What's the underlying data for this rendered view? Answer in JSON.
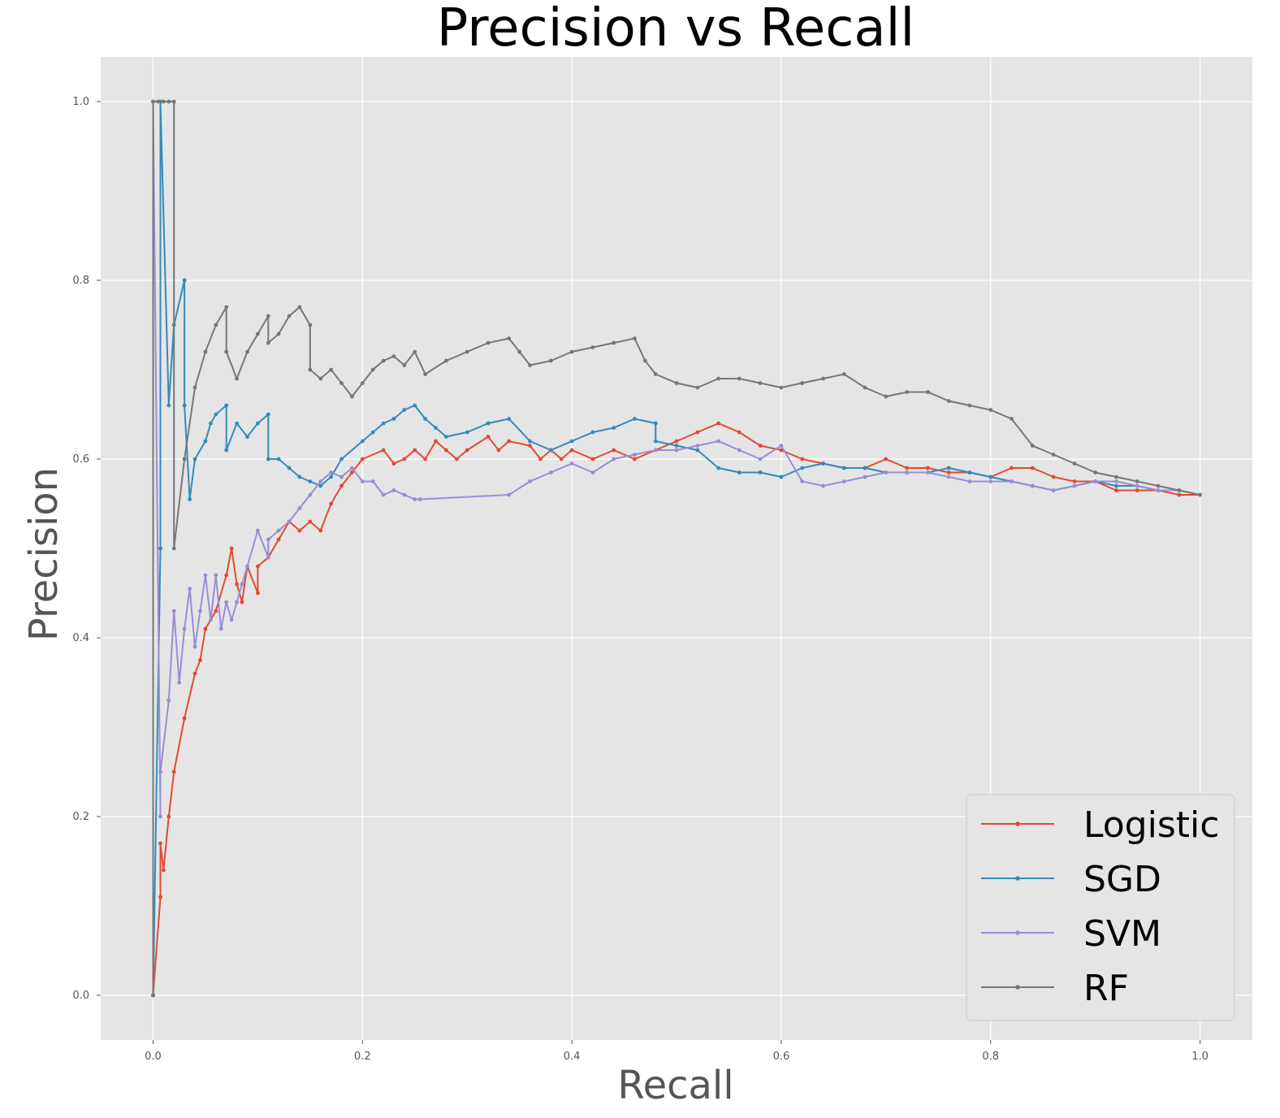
{
  "chart_data": {
    "type": "line",
    "title": "Precision vs Recall",
    "xlabel": "Recall",
    "ylabel": "Precision",
    "xlim": [
      -0.05,
      1.05
    ],
    "ylim": [
      -0.05,
      1.05
    ],
    "xticks": [
      0.0,
      0.2,
      0.4,
      0.6,
      0.8,
      1.0
    ],
    "yticks": [
      0.0,
      0.2,
      0.4,
      0.6,
      0.8,
      1.0
    ],
    "xtick_labels": [
      "0.0",
      "0.2",
      "0.4",
      "0.6",
      "0.8",
      "1.0"
    ],
    "ytick_labels": [
      "0.0",
      "0.2",
      "0.4",
      "0.6",
      "0.8",
      "1.0"
    ],
    "grid": true,
    "legend_position": "bottom-right",
    "series": [
      {
        "name": "Logistic",
        "color": "#E24A33",
        "x": [
          0.0,
          0.007,
          0.007,
          0.01,
          0.015,
          0.02,
          0.03,
          0.04,
          0.045,
          0.05,
          0.06,
          0.07,
          0.075,
          0.08,
          0.085,
          0.09,
          0.1,
          0.1,
          0.11,
          0.12,
          0.13,
          0.14,
          0.15,
          0.16,
          0.17,
          0.18,
          0.19,
          0.2,
          0.22,
          0.23,
          0.24,
          0.25,
          0.26,
          0.27,
          0.28,
          0.29,
          0.3,
          0.32,
          0.33,
          0.34,
          0.36,
          0.37,
          0.38,
          0.39,
          0.4,
          0.42,
          0.44,
          0.46,
          0.48,
          0.5,
          0.52,
          0.54,
          0.56,
          0.58,
          0.6,
          0.62,
          0.64,
          0.66,
          0.68,
          0.7,
          0.72,
          0.74,
          0.76,
          0.78,
          0.8,
          0.82,
          0.84,
          0.86,
          0.88,
          0.9,
          0.92,
          0.94,
          0.96,
          0.98,
          1.0
        ],
        "y": [
          0.0,
          0.11,
          0.17,
          0.14,
          0.2,
          0.25,
          0.31,
          0.36,
          0.375,
          0.41,
          0.43,
          0.47,
          0.5,
          0.46,
          0.44,
          0.48,
          0.45,
          0.48,
          0.49,
          0.51,
          0.53,
          0.52,
          0.53,
          0.52,
          0.55,
          0.57,
          0.585,
          0.6,
          0.61,
          0.595,
          0.6,
          0.61,
          0.6,
          0.62,
          0.61,
          0.6,
          0.61,
          0.625,
          0.61,
          0.62,
          0.615,
          0.6,
          0.61,
          0.6,
          0.61,
          0.6,
          0.61,
          0.6,
          0.61,
          0.62,
          0.63,
          0.64,
          0.63,
          0.615,
          0.61,
          0.6,
          0.595,
          0.59,
          0.59,
          0.6,
          0.59,
          0.59,
          0.585,
          0.585,
          0.58,
          0.59,
          0.59,
          0.58,
          0.575,
          0.575,
          0.565,
          0.565,
          0.565,
          0.56,
          0.56
        ]
      },
      {
        "name": "SGD",
        "color": "#348ABD",
        "x": [
          0.0,
          0.007,
          0.007,
          0.015,
          0.02,
          0.03,
          0.03,
          0.035,
          0.04,
          0.05,
          0.055,
          0.06,
          0.07,
          0.07,
          0.08,
          0.09,
          0.1,
          0.11,
          0.11,
          0.12,
          0.13,
          0.14,
          0.15,
          0.16,
          0.17,
          0.18,
          0.2,
          0.21,
          0.22,
          0.23,
          0.24,
          0.25,
          0.26,
          0.27,
          0.28,
          0.3,
          0.32,
          0.34,
          0.36,
          0.38,
          0.4,
          0.42,
          0.44,
          0.46,
          0.48,
          0.48,
          0.5,
          0.52,
          0.54,
          0.56,
          0.58,
          0.6,
          0.62,
          0.64,
          0.66,
          0.68,
          0.7,
          0.72,
          0.74,
          0.76,
          0.78,
          0.8,
          0.82,
          0.84,
          0.86,
          0.88,
          0.9,
          0.92,
          0.94,
          0.96,
          0.98
        ],
        "y": [
          0.0,
          0.5,
          1.0,
          0.66,
          0.75,
          0.8,
          0.66,
          0.555,
          0.6,
          0.62,
          0.64,
          0.65,
          0.66,
          0.61,
          0.64,
          0.625,
          0.64,
          0.65,
          0.6,
          0.6,
          0.59,
          0.58,
          0.575,
          0.57,
          0.58,
          0.6,
          0.62,
          0.63,
          0.64,
          0.645,
          0.655,
          0.66,
          0.645,
          0.635,
          0.625,
          0.63,
          0.64,
          0.645,
          0.62,
          0.61,
          0.62,
          0.63,
          0.635,
          0.645,
          0.64,
          0.62,
          0.615,
          0.61,
          0.59,
          0.585,
          0.585,
          0.58,
          0.59,
          0.595,
          0.59,
          0.59,
          0.585,
          0.585,
          0.585,
          0.59,
          0.585,
          0.58,
          0.575,
          0.57,
          0.565,
          0.57,
          0.575,
          0.57,
          0.57,
          0.565,
          0.565
        ]
      },
      {
        "name": "SVM",
        "color": "#988ED5",
        "x": [
          0.0,
          0.0,
          0.007,
          0.007,
          0.015,
          0.02,
          0.025,
          0.03,
          0.035,
          0.04,
          0.045,
          0.05,
          0.055,
          0.06,
          0.065,
          0.07,
          0.075,
          0.08,
          0.085,
          0.09,
          0.1,
          0.11,
          0.11,
          0.12,
          0.13,
          0.14,
          0.15,
          0.16,
          0.17,
          0.18,
          0.19,
          0.2,
          0.21,
          0.22,
          0.23,
          0.24,
          0.25,
          0.255,
          0.34,
          0.36,
          0.38,
          0.4,
          0.42,
          0.44,
          0.46,
          0.48,
          0.5,
          0.52,
          0.54,
          0.56,
          0.58,
          0.6,
          0.62,
          0.64,
          0.66,
          0.68,
          0.7,
          0.72,
          0.74,
          0.76,
          0.78,
          0.8,
          0.82,
          0.84,
          0.86,
          0.88,
          0.9,
          0.92,
          0.94,
          0.96,
          0.98
        ],
        "y": [
          0.0,
          1.0,
          0.2,
          0.25,
          0.33,
          0.43,
          0.35,
          0.41,
          0.455,
          0.39,
          0.43,
          0.47,
          0.42,
          0.47,
          0.41,
          0.44,
          0.42,
          0.44,
          0.46,
          0.48,
          0.52,
          0.49,
          0.51,
          0.52,
          0.53,
          0.545,
          0.56,
          0.575,
          0.585,
          0.58,
          0.59,
          0.575,
          0.575,
          0.56,
          0.565,
          0.56,
          0.555,
          0.555,
          0.56,
          0.575,
          0.585,
          0.595,
          0.585,
          0.6,
          0.605,
          0.61,
          0.61,
          0.615,
          0.62,
          0.61,
          0.6,
          0.615,
          0.575,
          0.57,
          0.575,
          0.58,
          0.585,
          0.585,
          0.585,
          0.58,
          0.575,
          0.575,
          0.575,
          0.57,
          0.565,
          0.57,
          0.575,
          0.575,
          0.57,
          0.565,
          0.565
        ]
      },
      {
        "name": "RF",
        "color": "#777777",
        "x": [
          0.0,
          0.0,
          0.005,
          0.01,
          0.015,
          0.02,
          0.02,
          0.03,
          0.04,
          0.05,
          0.06,
          0.07,
          0.07,
          0.08,
          0.09,
          0.1,
          0.11,
          0.11,
          0.12,
          0.13,
          0.14,
          0.15,
          0.15,
          0.16,
          0.17,
          0.18,
          0.19,
          0.2,
          0.21,
          0.22,
          0.23,
          0.24,
          0.25,
          0.26,
          0.28,
          0.3,
          0.32,
          0.34,
          0.35,
          0.36,
          0.38,
          0.4,
          0.42,
          0.44,
          0.46,
          0.47,
          0.48,
          0.5,
          0.52,
          0.54,
          0.56,
          0.58,
          0.6,
          0.62,
          0.64,
          0.66,
          0.68,
          0.7,
          0.72,
          0.74,
          0.76,
          0.78,
          0.8,
          0.82,
          0.84,
          0.86,
          0.88,
          0.9,
          0.92,
          0.94,
          0.96,
          0.98,
          1.0
        ],
        "y": [
          0.0,
          1.0,
          1.0,
          1.0,
          1.0,
          1.0,
          0.5,
          0.6,
          0.68,
          0.72,
          0.75,
          0.77,
          0.72,
          0.69,
          0.72,
          0.74,
          0.76,
          0.73,
          0.74,
          0.76,
          0.77,
          0.75,
          0.7,
          0.69,
          0.7,
          0.685,
          0.67,
          0.685,
          0.7,
          0.71,
          0.715,
          0.705,
          0.72,
          0.695,
          0.71,
          0.72,
          0.73,
          0.735,
          0.72,
          0.705,
          0.71,
          0.72,
          0.725,
          0.73,
          0.735,
          0.71,
          0.695,
          0.685,
          0.68,
          0.69,
          0.69,
          0.685,
          0.68,
          0.685,
          0.69,
          0.695,
          0.68,
          0.67,
          0.675,
          0.675,
          0.665,
          0.66,
          0.655,
          0.645,
          0.615,
          0.605,
          0.595,
          0.585,
          0.58,
          0.575,
          0.57,
          0.565,
          0.56
        ]
      }
    ]
  }
}
